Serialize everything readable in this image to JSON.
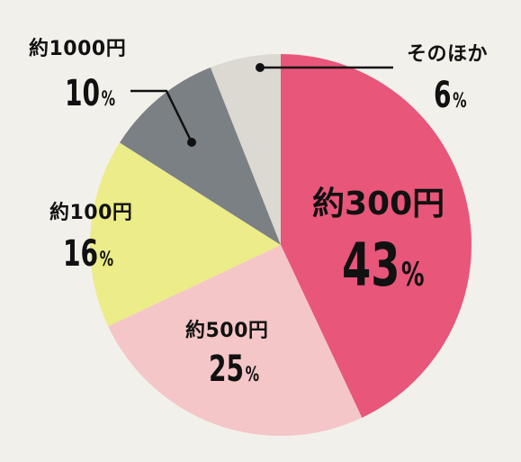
{
  "chart_data": {
    "type": "pie",
    "slices": [
      {
        "label": "約300円",
        "value": 43,
        "color": "#e8567a"
      },
      {
        "label": "約500円",
        "value": 25,
        "color": "#f4c6c8"
      },
      {
        "label": "約100円",
        "value": 16,
        "color": "#ecec88"
      },
      {
        "label": "約1000円",
        "value": 10,
        "color": "#7b8085"
      },
      {
        "label": "そのほか",
        "value": 6,
        "color": "#dcd8d2"
      }
    ],
    "unit": "%"
  }
}
